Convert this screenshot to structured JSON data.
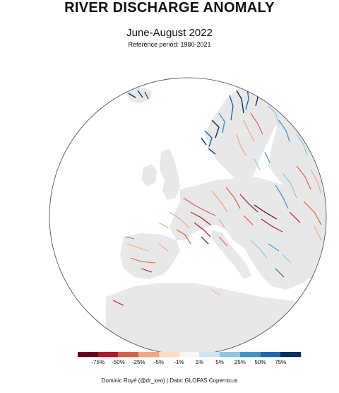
{
  "title": "RIVER DISCHARGE ANOMALY",
  "subtitle": "June-August 2022",
  "reference": "Reference period: 1980-2021",
  "credit": "Dominic Royé (@dr_xeo) | Data: GLOFAS Copernicus",
  "legend": {
    "colors": [
      "#67001f",
      "#b2182b",
      "#d6604d",
      "#f4a582",
      "#fddbc7",
      "#f7f7f7",
      "#d1e5f0",
      "#92c5de",
      "#4393c3",
      "#2166ac",
      "#053061"
    ],
    "labels": [
      "-75%",
      "-50%",
      "-25%",
      "-5%",
      "-1%",
      "1%",
      "5%",
      "25%",
      "50%",
      "75%"
    ]
  },
  "colors": {
    "land": "#e8e8e8",
    "globe_outline": "#444444"
  }
}
